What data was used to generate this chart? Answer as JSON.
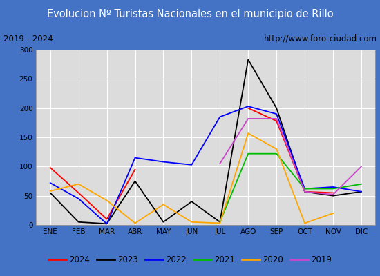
{
  "title": "Evolucion Nº Turistas Nacionales en el municipio de Rillo",
  "subtitle_left": "2019 - 2024",
  "subtitle_right": "http://www.foro-ciudad.com",
  "months": [
    "ENE",
    "FEB",
    "MAR",
    "ABR",
    "MAY",
    "JUN",
    "JUL",
    "AGO",
    "SEP",
    "OCT",
    "NOV",
    "DIC"
  ],
  "ylim": [
    0,
    300
  ],
  "yticks": [
    0,
    50,
    100,
    150,
    200,
    250,
    300
  ],
  "series": {
    "2024": {
      "color": "#ff0000",
      "data": [
        98,
        55,
        10,
        95,
        null,
        null,
        null,
        200,
        178,
        57,
        55,
        null
      ]
    },
    "2023": {
      "color": "#000000",
      "data": [
        55,
        5,
        2,
        75,
        5,
        40,
        5,
        283,
        200,
        57,
        50,
        57
      ]
    },
    "2022": {
      "color": "#0000ff",
      "data": [
        72,
        45,
        2,
        115,
        108,
        103,
        185,
        203,
        190,
        62,
        65,
        57
      ]
    },
    "2021": {
      "color": "#00bb00",
      "data": [
        null,
        null,
        null,
        null,
        null,
        null,
        5,
        122,
        122,
        62,
        62,
        70
      ]
    },
    "2020": {
      "color": "#ffa500",
      "data": [
        58,
        70,
        42,
        3,
        35,
        5,
        3,
        157,
        130,
        3,
        20,
        null
      ]
    },
    "2019": {
      "color": "#cc44cc",
      "data": [
        null,
        null,
        null,
        null,
        null,
        null,
        105,
        182,
        182,
        57,
        52,
        100
      ]
    }
  },
  "title_bg_color": "#4472c4",
  "title_font_color": "#ffffff",
  "plot_bg_color": "#dcdcdc",
  "grid_color": "#ffffff",
  "border_color": "#4472c4",
  "subtitle_box_color": "#f0f0f0",
  "legend_order": [
    "2024",
    "2023",
    "2022",
    "2021",
    "2020",
    "2019"
  ]
}
